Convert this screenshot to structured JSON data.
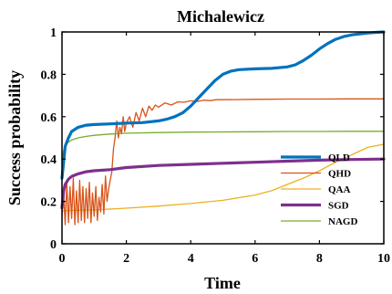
{
  "chart_data": {
    "type": "line",
    "title": "Michalewicz",
    "xlabel": "Time",
    "ylabel": "Success probability",
    "xlim": [
      0,
      10
    ],
    "ylim": [
      0,
      1
    ],
    "x_ticks": [
      "0",
      "2",
      "4",
      "6",
      "8",
      "10"
    ],
    "y_ticks": [
      "0",
      "0.2",
      "0.4",
      "0.6",
      "0.8",
      "1"
    ],
    "grid": false,
    "legend_position": "center-right",
    "series": [
      {
        "name": "QLD",
        "color": "#0072BD",
        "x": [
          0,
          0.1,
          0.2,
          0.3,
          0.5,
          0.75,
          1.0,
          1.5,
          2.0,
          2.5,
          3.0,
          3.25,
          3.5,
          3.75,
          4.0,
          4.25,
          4.5,
          4.75,
          5.0,
          5.25,
          5.5,
          6.0,
          6.5,
          7.0,
          7.25,
          7.5,
          7.75,
          8.0,
          8.25,
          8.5,
          8.75,
          9.0,
          9.25,
          9.5,
          9.75,
          10.0
        ],
        "y": [
          0.31,
          0.46,
          0.5,
          0.53,
          0.55,
          0.56,
          0.563,
          0.566,
          0.57,
          0.572,
          0.58,
          0.588,
          0.6,
          0.618,
          0.65,
          0.69,
          0.73,
          0.77,
          0.8,
          0.815,
          0.822,
          0.826,
          0.828,
          0.835,
          0.845,
          0.865,
          0.89,
          0.92,
          0.945,
          0.965,
          0.978,
          0.986,
          0.991,
          0.995,
          0.998,
          1.0
        ]
      },
      {
        "name": "QHD",
        "color": "#D95319",
        "x": [
          0,
          0.05,
          0.1,
          0.15,
          0.2,
          0.25,
          0.3,
          0.35,
          0.4,
          0.45,
          0.5,
          0.55,
          0.6,
          0.65,
          0.7,
          0.75,
          0.8,
          0.85,
          0.9,
          0.95,
          1.0,
          1.05,
          1.1,
          1.15,
          1.2,
          1.25,
          1.3,
          1.35,
          1.4,
          1.45,
          1.5,
          1.55,
          1.6,
          1.65,
          1.7,
          1.75,
          1.8,
          1.85,
          1.9,
          1.95,
          2.0,
          2.1,
          2.2,
          2.3,
          2.4,
          2.5,
          2.6,
          2.7,
          2.8,
          2.9,
          3.0,
          3.2,
          3.4,
          3.6,
          3.8,
          4.0,
          4.2,
          4.4,
          4.6,
          4.8,
          5.0,
          6.0,
          7.0,
          8.0,
          9.0,
          10.0
        ],
        "y": [
          0.13,
          0.24,
          0.09,
          0.29,
          0.1,
          0.27,
          0.12,
          0.31,
          0.09,
          0.25,
          0.1,
          0.3,
          0.11,
          0.27,
          0.1,
          0.26,
          0.12,
          0.29,
          0.1,
          0.24,
          0.13,
          0.27,
          0.11,
          0.22,
          0.15,
          0.28,
          0.14,
          0.32,
          0.2,
          0.26,
          0.3,
          0.34,
          0.45,
          0.5,
          0.58,
          0.5,
          0.55,
          0.52,
          0.6,
          0.53,
          0.57,
          0.6,
          0.55,
          0.62,
          0.58,
          0.64,
          0.6,
          0.65,
          0.63,
          0.655,
          0.645,
          0.665,
          0.655,
          0.67,
          0.668,
          0.675,
          0.672,
          0.678,
          0.676,
          0.68,
          0.68,
          0.682,
          0.683,
          0.683,
          0.684,
          0.684
        ]
      },
      {
        "name": "QAA",
        "color": "#EDB120",
        "x": [
          0,
          0.5,
          1.0,
          2.0,
          3.0,
          4.0,
          5.0,
          6.0,
          6.5,
          7.0,
          7.5,
          8.0,
          8.5,
          9.0,
          9.5,
          10.0
        ],
        "y": [
          0.155,
          0.158,
          0.16,
          0.168,
          0.178,
          0.19,
          0.205,
          0.23,
          0.25,
          0.28,
          0.31,
          0.345,
          0.385,
          0.42,
          0.455,
          0.47
        ]
      },
      {
        "name": "SGD",
        "color": "#7E2F8E",
        "x": [
          0,
          0.05,
          0.1,
          0.2,
          0.3,
          0.5,
          0.75,
          1.0,
          1.5,
          2.0,
          3.0,
          4.0,
          5.0,
          6.0,
          7.0,
          8.0,
          9.0,
          10.0
        ],
        "y": [
          0.17,
          0.25,
          0.28,
          0.305,
          0.318,
          0.33,
          0.34,
          0.345,
          0.35,
          0.36,
          0.37,
          0.375,
          0.38,
          0.385,
          0.39,
          0.395,
          0.398,
          0.4
        ]
      },
      {
        "name": "NAGD",
        "color": "#77AC30",
        "x": [
          0,
          0.05,
          0.1,
          0.2,
          0.3,
          0.5,
          0.75,
          1.0,
          1.5,
          2.0,
          3.0,
          4.0,
          5.0,
          6.0,
          7.0,
          8.0,
          9.0,
          10.0
        ],
        "y": [
          0.4,
          0.44,
          0.465,
          0.48,
          0.49,
          0.5,
          0.507,
          0.512,
          0.518,
          0.522,
          0.525,
          0.527,
          0.528,
          0.529,
          0.53,
          0.53,
          0.531,
          0.531
        ]
      }
    ]
  }
}
